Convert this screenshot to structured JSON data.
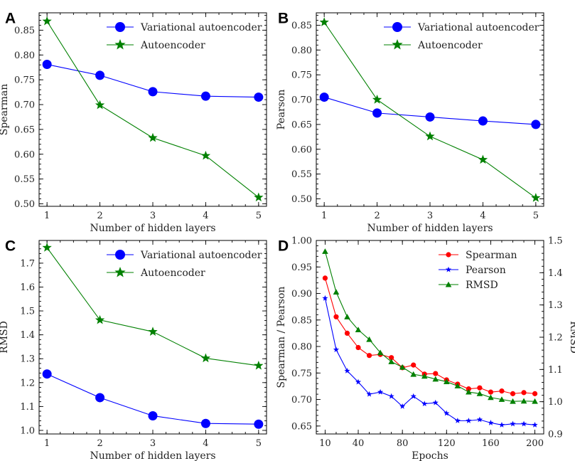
{
  "chart_data": [
    {
      "panel": "A",
      "type": "line",
      "xlabel": "Number of hidden layers",
      "ylabel": "Spearman",
      "x": [
        1,
        2,
        3,
        4,
        5
      ],
      "xlim": [
        0.85,
        5.15
      ],
      "ylim": [
        0.495,
        0.885
      ],
      "xticks": [
        1,
        2,
        3,
        4,
        5
      ],
      "yticks": [
        0.5,
        0.55,
        0.6,
        0.65,
        0.7,
        0.75,
        0.8,
        0.85
      ],
      "ydecimals": 2,
      "legend_position": "top-right",
      "series": [
        {
          "name": "Variational autoencoder",
          "marker": "circle",
          "color": "#0000ff",
          "values": [
            0.781,
            0.759,
            0.726,
            0.717,
            0.715
          ]
        },
        {
          "name": "Autoencoder",
          "marker": "star",
          "color": "#008000",
          "values": [
            0.868,
            0.699,
            0.633,
            0.597,
            0.513
          ]
        }
      ]
    },
    {
      "panel": "B",
      "type": "line",
      "xlabel": "Number of hidden layers",
      "ylabel": "Pearson",
      "x": [
        1,
        2,
        3,
        4,
        5
      ],
      "xlim": [
        0.85,
        5.15
      ],
      "ylim": [
        0.485,
        0.875
      ],
      "xticks": [
        1,
        2,
        3,
        4,
        5
      ],
      "yticks": [
        0.5,
        0.55,
        0.6,
        0.65,
        0.7,
        0.75,
        0.8,
        0.85
      ],
      "ydecimals": 2,
      "legend_position": "top-right",
      "series": [
        {
          "name": "Variational autoencoder",
          "marker": "circle",
          "color": "#0000ff",
          "values": [
            0.705,
            0.673,
            0.665,
            0.657,
            0.65
          ]
        },
        {
          "name": "Autoencoder",
          "marker": "star",
          "color": "#008000",
          "values": [
            0.856,
            0.7,
            0.626,
            0.579,
            0.502
          ]
        }
      ]
    },
    {
      "panel": "C",
      "type": "line",
      "xlabel": "Number of hidden layers",
      "ylabel": "RMSD",
      "x": [
        1,
        2,
        3,
        4,
        5
      ],
      "xlim": [
        0.85,
        5.15
      ],
      "ylim": [
        0.985,
        1.795
      ],
      "xticks": [
        1,
        2,
        3,
        4,
        5
      ],
      "yticks": [
        1.0,
        1.1,
        1.2,
        1.3,
        1.4,
        1.5,
        1.6,
        1.7
      ],
      "ydecimals": 1,
      "legend_position": "top-right",
      "series": [
        {
          "name": "Variational autoencoder",
          "marker": "circle",
          "color": "#0000ff",
          "values": [
            1.236,
            1.137,
            1.061,
            1.029,
            1.026
          ]
        },
        {
          "name": "Autoencoder",
          "marker": "star",
          "color": "#008000",
          "values": [
            1.765,
            1.462,
            1.413,
            1.302,
            1.271
          ]
        }
      ]
    },
    {
      "panel": "D",
      "type": "line",
      "xlabel": "Epochs",
      "ylabel": "Spearman / Pearson",
      "ylabel_right": "RMSD",
      "x": [
        10,
        20,
        30,
        40,
        50,
        60,
        70,
        80,
        90,
        100,
        110,
        120,
        130,
        140,
        150,
        160,
        170,
        180,
        190,
        200
      ],
      "xlim": [
        2,
        208
      ],
      "ylim": [
        0.635,
        1.0
      ],
      "ylim_right": [
        0.9,
        1.5
      ],
      "xticks": [
        10,
        40,
        80,
        120,
        160,
        200
      ],
      "yticks": [
        0.65,
        0.7,
        0.75,
        0.8,
        0.85,
        0.9,
        0.95,
        1.0
      ],
      "yticks_right": [
        0.9,
        1.0,
        1.1,
        1.2,
        1.3,
        1.4,
        1.5
      ],
      "ydecimals": 2,
      "ydecimals_right": 1,
      "legend_position": "top-right",
      "series": [
        {
          "name": "Spearman",
          "marker": "dot",
          "color": "#ff0000",
          "axis": "left",
          "values": [
            0.929,
            0.856,
            0.825,
            0.798,
            0.783,
            0.785,
            0.779,
            0.76,
            0.765,
            0.748,
            0.749,
            0.737,
            0.729,
            0.72,
            0.722,
            0.714,
            0.716,
            0.711,
            0.713,
            0.711
          ]
        },
        {
          "name": "Pearson",
          "marker": "star",
          "color": "#0000ff",
          "axis": "left",
          "values": [
            0.891,
            0.794,
            0.754,
            0.733,
            0.71,
            0.714,
            0.706,
            0.687,
            0.706,
            0.692,
            0.694,
            0.674,
            0.66,
            0.66,
            0.662,
            0.656,
            0.652,
            0.654,
            0.654,
            0.652
          ]
        },
        {
          "name": "RMSD",
          "marker": "triangle",
          "color": "#008000",
          "axis": "right",
          "values": [
            1.466,
            1.34,
            1.263,
            1.223,
            1.193,
            1.152,
            1.124,
            1.107,
            1.085,
            1.079,
            1.07,
            1.062,
            1.049,
            1.03,
            1.025,
            1.013,
            1.007,
            1.001,
            1.002,
            1.001
          ]
        }
      ]
    }
  ]
}
